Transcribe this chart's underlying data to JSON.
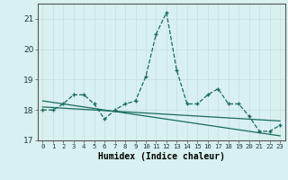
{
  "xlabel": "Humidex (Indice chaleur)",
  "x": [
    0,
    1,
    2,
    3,
    4,
    5,
    6,
    7,
    8,
    9,
    10,
    11,
    12,
    13,
    14,
    15,
    16,
    17,
    18,
    19,
    20,
    21,
    22,
    23
  ],
  "y_main": [
    18.0,
    18.0,
    18.2,
    18.5,
    18.5,
    18.2,
    17.7,
    18.0,
    18.2,
    18.3,
    19.1,
    20.5,
    21.2,
    19.3,
    18.2,
    18.2,
    18.5,
    18.7,
    18.2,
    18.2,
    17.8,
    17.3,
    17.3,
    17.5
  ],
  "y_trend1": [
    18.3,
    18.25,
    18.2,
    18.15,
    18.1,
    18.05,
    18.0,
    17.95,
    17.9,
    17.85,
    17.8,
    17.75,
    17.7,
    17.65,
    17.6,
    17.55,
    17.5,
    17.45,
    17.4,
    17.35,
    17.3,
    17.25,
    17.2,
    17.15
  ],
  "y_trend2": [
    18.1,
    18.08,
    18.06,
    18.04,
    18.02,
    18.0,
    17.98,
    17.96,
    17.94,
    17.92,
    17.9,
    17.88,
    17.86,
    17.84,
    17.82,
    17.8,
    17.78,
    17.76,
    17.74,
    17.72,
    17.7,
    17.68,
    17.66,
    17.64
  ],
  "line_color": "#1a6b5a",
  "bg_color": "#d8f0f0",
  "grid_color": "#c8dede",
  "ylim": [
    17.0,
    21.5
  ],
  "yticks": [
    17,
    18,
    19,
    20,
    21
  ],
  "xlim": [
    -0.5,
    23.5
  ]
}
